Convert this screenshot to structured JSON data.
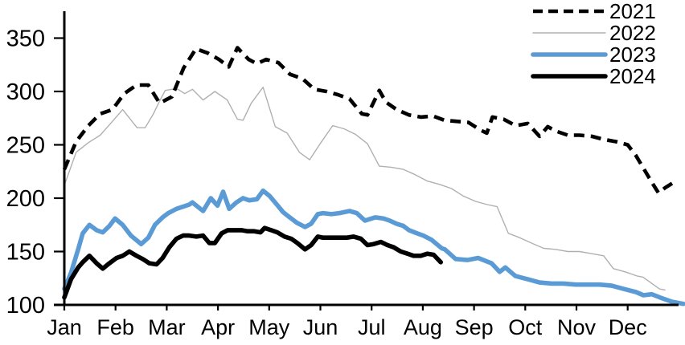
{
  "chart_data": {
    "type": "line",
    "title": "",
    "x_axis": {
      "labels": [
        "Jan",
        "Feb",
        "Mar",
        "Apr",
        "May",
        "Jun",
        "Jul",
        "Aug",
        "Sep",
        "Oct",
        "Nov",
        "Dec"
      ],
      "range_months": [
        0,
        12
      ],
      "grid": false
    },
    "y_axis": {
      "ticks": [
        100,
        150,
        200,
        250,
        300,
        350
      ],
      "range": [
        100,
        375
      ],
      "grid": false
    },
    "legend": {
      "position": "top-right"
    },
    "colors": {
      "black": "#000000",
      "gray": "#b0b0b0",
      "blue": "#5b9bd5"
    },
    "series": [
      {
        "name": "2022",
        "color": "#b0b0b0",
        "style": "solid",
        "width": 1.4,
        "points": [
          [
            0,
            212
          ],
          [
            0.23,
            243
          ],
          [
            0.47,
            252
          ],
          [
            0.7,
            259
          ],
          [
            0.94,
            272
          ],
          [
            1.14,
            283
          ],
          [
            1.42,
            266
          ],
          [
            1.58,
            266
          ],
          [
            1.74,
            279
          ],
          [
            1.86,
            291
          ],
          [
            1.97,
            301
          ],
          [
            2.1,
            302
          ],
          [
            2.22,
            302
          ],
          [
            2.35,
            298
          ],
          [
            2.5,
            302
          ],
          [
            2.71,
            292
          ],
          [
            2.94,
            300
          ],
          [
            3.18,
            292
          ],
          [
            3.38,
            274
          ],
          [
            3.49,
            273
          ],
          [
            3.65,
            289
          ],
          [
            3.88,
            304
          ],
          [
            4.12,
            267
          ],
          [
            4.35,
            261
          ],
          [
            4.59,
            243
          ],
          [
            4.79,
            236
          ],
          [
            5.01,
            252
          ],
          [
            5.24,
            268
          ],
          [
            5.46,
            265
          ],
          [
            5.68,
            260
          ],
          [
            5.92,
            251
          ],
          [
            6.15,
            230
          ],
          [
            6.38,
            229
          ],
          [
            6.62,
            227
          ],
          [
            6.85,
            222
          ],
          [
            7.09,
            216
          ],
          [
            7.32,
            213
          ],
          [
            7.56,
            209
          ],
          [
            7.79,
            202
          ],
          [
            8.03,
            197
          ],
          [
            8.26,
            194
          ],
          [
            8.45,
            192
          ],
          [
            8.67,
            167
          ],
          [
            8.89,
            163
          ],
          [
            9.12,
            158
          ],
          [
            9.36,
            153
          ],
          [
            9.59,
            152
          ],
          [
            9.83,
            150
          ],
          [
            10.06,
            150
          ],
          [
            10.3,
            148
          ],
          [
            10.53,
            146
          ],
          [
            10.72,
            134
          ],
          [
            10.95,
            131
          ],
          [
            11.19,
            127
          ],
          [
            11.3,
            126
          ],
          [
            11.62,
            115
          ],
          [
            11.73,
            114
          ]
        ]
      },
      {
        "name": "2021",
        "color": "#000000",
        "style": "dashed",
        "width": 4.6,
        "points": [
          [
            0,
            227
          ],
          [
            0.23,
            253
          ],
          [
            0.47,
            268
          ],
          [
            0.7,
            279
          ],
          [
            0.94,
            283
          ],
          [
            1.17,
            298
          ],
          [
            1.41,
            306
          ],
          [
            1.64,
            306
          ],
          [
            1.86,
            289
          ],
          [
            2.1,
            295
          ],
          [
            2.33,
            322
          ],
          [
            2.57,
            340
          ],
          [
            2.8,
            336
          ],
          [
            3.02,
            330
          ],
          [
            3.21,
            323
          ],
          [
            3.38,
            341
          ],
          [
            3.6,
            330
          ],
          [
            3.76,
            326
          ],
          [
            3.94,
            330
          ],
          [
            4.18,
            327
          ],
          [
            4.41,
            316
          ],
          [
            4.65,
            312
          ],
          [
            4.88,
            302
          ],
          [
            5.12,
            300
          ],
          [
            5.34,
            297
          ],
          [
            5.57,
            293
          ],
          [
            5.81,
            279
          ],
          [
            5.92,
            278
          ],
          [
            6.15,
            301
          ],
          [
            6.28,
            290
          ],
          [
            6.49,
            283
          ],
          [
            6.73,
            278
          ],
          [
            6.96,
            276
          ],
          [
            7.2,
            277
          ],
          [
            7.42,
            273
          ],
          [
            7.65,
            272
          ],
          [
            7.89,
            271
          ],
          [
            8.12,
            264
          ],
          [
            8.25,
            261
          ],
          [
            8.36,
            276
          ],
          [
            8.58,
            274
          ],
          [
            8.81,
            268
          ],
          [
            9.05,
            270
          ],
          [
            9.28,
            258
          ],
          [
            9.44,
            267
          ],
          [
            9.59,
            263
          ],
          [
            9.83,
            259
          ],
          [
            10.06,
            259
          ],
          [
            10.3,
            258
          ],
          [
            10.53,
            255
          ],
          [
            10.77,
            253
          ],
          [
            11,
            250
          ],
          [
            11.16,
            240
          ],
          [
            11.31,
            228
          ],
          [
            11.47,
            215
          ],
          [
            11.6,
            205
          ],
          [
            11.74,
            210
          ],
          [
            11.94,
            216
          ]
        ]
      },
      {
        "name": "2023",
        "color": "#5b9bd5",
        "style": "solid",
        "width": 5.6,
        "points": [
          [
            0,
            115
          ],
          [
            0.13,
            130
          ],
          [
            0.27,
            152
          ],
          [
            0.36,
            167
          ],
          [
            0.49,
            175
          ],
          [
            0.63,
            170
          ],
          [
            0.75,
            168
          ],
          [
            0.88,
            174
          ],
          [
            0.99,
            181
          ],
          [
            1.14,
            175
          ],
          [
            1.3,
            165
          ],
          [
            1.5,
            157
          ],
          [
            1.64,
            163
          ],
          [
            1.77,
            175
          ],
          [
            1.92,
            182
          ],
          [
            2.03,
            186
          ],
          [
            2.19,
            190
          ],
          [
            2.44,
            194
          ],
          [
            2.5,
            196
          ],
          [
            2.71,
            188
          ],
          [
            2.86,
            200
          ],
          [
            2.99,
            193
          ],
          [
            3.1,
            206
          ],
          [
            3.22,
            190
          ],
          [
            3.36,
            196
          ],
          [
            3.49,
            200
          ],
          [
            3.61,
            198
          ],
          [
            3.76,
            199
          ],
          [
            3.88,
            207
          ],
          [
            4.01,
            202
          ],
          [
            4.15,
            194
          ],
          [
            4.27,
            187
          ],
          [
            4.4,
            182
          ],
          [
            4.54,
            177
          ],
          [
            4.7,
            173
          ],
          [
            4.82,
            176
          ],
          [
            4.95,
            185
          ],
          [
            5.05,
            186
          ],
          [
            5.21,
            185
          ],
          [
            5.37,
            186
          ],
          [
            5.57,
            188
          ],
          [
            5.71,
            186
          ],
          [
            5.87,
            179
          ],
          [
            6.07,
            182
          ],
          [
            6.23,
            181
          ],
          [
            6.35,
            179
          ],
          [
            6.49,
            176
          ],
          [
            6.62,
            174
          ],
          [
            6.73,
            170
          ],
          [
            6.89,
            167
          ],
          [
            7.01,
            165
          ],
          [
            7.17,
            161
          ],
          [
            7.37,
            153
          ],
          [
            7.43,
            152
          ],
          [
            7.64,
            143
          ],
          [
            7.87,
            142
          ],
          [
            8.08,
            144
          ],
          [
            8.34,
            139
          ],
          [
            8.5,
            131
          ],
          [
            8.61,
            135
          ],
          [
            8.81,
            127
          ],
          [
            9.05,
            124
          ],
          [
            9.28,
            121
          ],
          [
            9.52,
            120
          ],
          [
            9.75,
            120
          ],
          [
            9.98,
            119
          ],
          [
            10.22,
            119
          ],
          [
            10.45,
            119
          ],
          [
            10.69,
            118
          ],
          [
            10.92,
            115
          ],
          [
            11.16,
            112
          ],
          [
            11.31,
            109
          ],
          [
            11.47,
            110
          ],
          [
            11.63,
            107
          ],
          [
            11.86,
            103
          ],
          [
            12.09,
            101
          ]
        ]
      },
      {
        "name": "2024",
        "color": "#000000",
        "style": "solid",
        "width": 5.6,
        "points": [
          [
            0,
            107
          ],
          [
            0.13,
            124
          ],
          [
            0.27,
            135
          ],
          [
            0.36,
            140
          ],
          [
            0.49,
            146
          ],
          [
            0.63,
            139
          ],
          [
            0.75,
            134
          ],
          [
            0.88,
            139
          ],
          [
            1.02,
            144
          ],
          [
            1.14,
            146
          ],
          [
            1.27,
            150
          ],
          [
            1.41,
            146
          ],
          [
            1.53,
            143
          ],
          [
            1.66,
            139
          ],
          [
            1.8,
            138
          ],
          [
            1.92,
            144
          ],
          [
            2.05,
            154
          ],
          [
            2.19,
            162
          ],
          [
            2.32,
            165
          ],
          [
            2.44,
            165
          ],
          [
            2.58,
            164
          ],
          [
            2.71,
            165
          ],
          [
            2.83,
            158
          ],
          [
            2.94,
            158
          ],
          [
            3.07,
            167
          ],
          [
            3.19,
            170
          ],
          [
            3.33,
            170
          ],
          [
            3.46,
            170
          ],
          [
            3.58,
            169
          ],
          [
            3.71,
            169
          ],
          [
            3.83,
            168
          ],
          [
            3.91,
            172
          ],
          [
            4.04,
            170
          ],
          [
            4.16,
            168
          ],
          [
            4.3,
            164
          ],
          [
            4.43,
            162
          ],
          [
            4.55,
            158
          ],
          [
            4.7,
            152
          ],
          [
            4.82,
            156
          ],
          [
            4.95,
            164
          ],
          [
            5.05,
            163
          ],
          [
            5.21,
            163
          ],
          [
            5.37,
            163
          ],
          [
            5.52,
            163
          ],
          [
            5.65,
            164
          ],
          [
            5.79,
            162
          ],
          [
            5.92,
            156
          ],
          [
            6.04,
            157
          ],
          [
            6.18,
            159
          ],
          [
            6.31,
            156
          ],
          [
            6.43,
            154
          ],
          [
            6.57,
            150
          ],
          [
            6.7,
            148
          ],
          [
            6.82,
            146
          ],
          [
            6.96,
            146
          ],
          [
            7.09,
            148
          ],
          [
            7.21,
            147
          ],
          [
            7.35,
            140
          ]
        ]
      }
    ],
    "legend_order": [
      "2021",
      "2022",
      "2023",
      "2024"
    ]
  }
}
